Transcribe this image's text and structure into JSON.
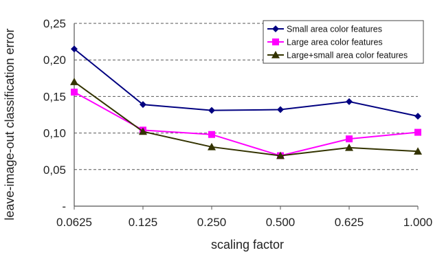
{
  "chart_data": {
    "type": "line",
    "title": "",
    "xlabel": "scaling factor",
    "ylabel": "leave-image-out classification error",
    "categories": [
      "0.0625",
      "0.125",
      "0.250",
      "0.500",
      "0.625",
      "1.000"
    ],
    "ylim": [
      0,
      0.25
    ],
    "yticks": [
      {
        "value": 0,
        "label": "-"
      },
      {
        "value": 0.05,
        "label": "0,05"
      },
      {
        "value": 0.1,
        "label": "0,10"
      },
      {
        "value": 0.15,
        "label": "0,15"
      },
      {
        "value": 0.2,
        "label": "0,20"
      },
      {
        "value": 0.25,
        "label": "0,25"
      }
    ],
    "grid": "horizontal-dashed",
    "legend_position": "top-right",
    "series": [
      {
        "name": "Small area color features",
        "color": "#000080",
        "marker": "diamond",
        "values": [
          0.215,
          0.139,
          0.131,
          0.132,
          0.143,
          0.123
        ]
      },
      {
        "name": "Large area color features",
        "color": "#ff00ff",
        "marker": "square",
        "values": [
          0.156,
          0.104,
          0.098,
          0.069,
          0.092,
          0.101
        ]
      },
      {
        "name": "Large+small area color features",
        "color": "#333300",
        "marker": "triangle",
        "values": [
          0.17,
          0.102,
          0.081,
          0.069,
          0.08,
          0.075
        ]
      }
    ]
  }
}
